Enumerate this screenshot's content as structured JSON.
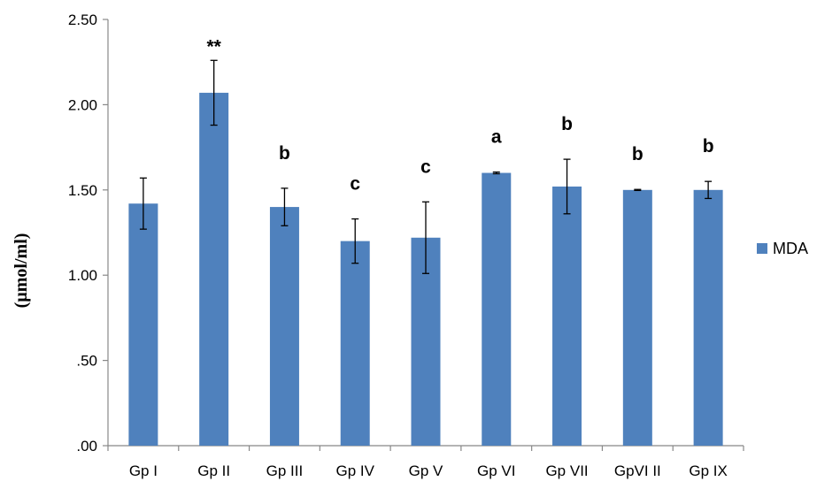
{
  "chart_data": {
    "type": "bar",
    "ylabel": "(µmol/ml)",
    "categories": [
      "Gp I",
      "Gp II",
      "Gp III",
      "Gp IV",
      "Gp V",
      "Gp VI",
      "Gp VII",
      "GpVI II",
      "Gp IX"
    ],
    "series": [
      {
        "name": "MDA",
        "color": "#4f81bd",
        "values": [
          1.42,
          2.07,
          1.4,
          1.2,
          1.22,
          1.6,
          1.52,
          1.5,
          1.5
        ],
        "error": [
          0.15,
          0.19,
          0.11,
          0.13,
          0.21,
          0.005,
          0.16,
          0.003,
          0.05
        ],
        "significance": [
          "",
          "**",
          "b",
          "c",
          "c",
          "a",
          "b",
          "b",
          "b"
        ]
      }
    ],
    "ylim": [
      0,
      2.5
    ],
    "yticks": [
      0,
      0.5,
      1.0,
      1.5,
      2.0,
      2.5
    ],
    "ytick_labels": [
      ".00",
      ".50",
      "1.00",
      "1.50",
      "2.00",
      "2.50"
    ],
    "grid": false,
    "legend": "right"
  }
}
